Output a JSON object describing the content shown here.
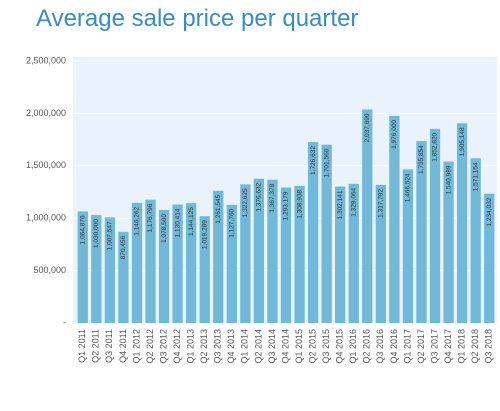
{
  "chart_data": {
    "type": "bar",
    "title": "Average sale price per quarter",
    "categories": [
      "Q1 2011",
      "Q2 2011",
      "Q3 2011",
      "Q4 2011",
      "Q1 2012",
      "Q2 2012",
      "Q3 2012",
      "Q4 2012",
      "Q1 2013",
      "Q2 2013",
      "Q3 2013",
      "Q4 2013",
      "Q1 2014",
      "Q2 2014",
      "Q3 2014",
      "Q4 2014",
      "Q1 2015",
      "Q2 2015",
      "Q3 2015",
      "Q4 2015",
      "Q1 2016",
      "Q2 2016",
      "Q3 2016",
      "Q4 2016",
      "Q1 2017",
      "Q2 2017",
      "Q3 2017",
      "Q4 2017",
      "Q1 2018",
      "Q2 2018",
      "Q3 2018"
    ],
    "values": [
      1064876,
      1030000,
      1007547,
      870456,
      1146262,
      1176796,
      1078500,
      1130414,
      1144125,
      1019289,
      1261545,
      1127760,
      1322625,
      1376632,
      1367378,
      1293179,
      1308938,
      1726632,
      1701560,
      1302141,
      1328064,
      2037690,
      1317792,
      1976000,
      1466524,
      1735854,
      1852820,
      1540989,
      1905148,
      1571154,
      1234032
    ],
    "value_labels": [
      "1,064,876",
      "1,030,000",
      "1,007,547",
      "870,456",
      "1,146,262",
      "1,176,796",
      "1,078,500",
      "1,130,414",
      "1,144,125",
      "1,019,289",
      "1,261,545",
      "1,127,760",
      "1,322,625",
      "1,376,632",
      "1,367,378",
      "1,293,179",
      "1,308,938",
      "1,726,632",
      "1,701,560",
      "1,302,141",
      "1,328,064",
      "2,037,690",
      "1,317,792",
      "1,976,000",
      "1,466,524",
      "1,735,854",
      "1,852,820",
      "1,540,989",
      "1,905,148",
      "1,571,154",
      "1,234,032"
    ],
    "color": "#72b9d9",
    "ylim": [
      0,
      2500000
    ],
    "yticks": [
      {
        "value": 0,
        "label": "-"
      },
      {
        "value": 500000,
        "label": "500,000"
      },
      {
        "value": 1000000,
        "label": "1,000,000"
      },
      {
        "value": 1500000,
        "label": "1,500,000"
      },
      {
        "value": 2000000,
        "label": "2,000,000"
      },
      {
        "value": 2500000,
        "label": "2,500,000"
      }
    ],
    "grid": true
  }
}
